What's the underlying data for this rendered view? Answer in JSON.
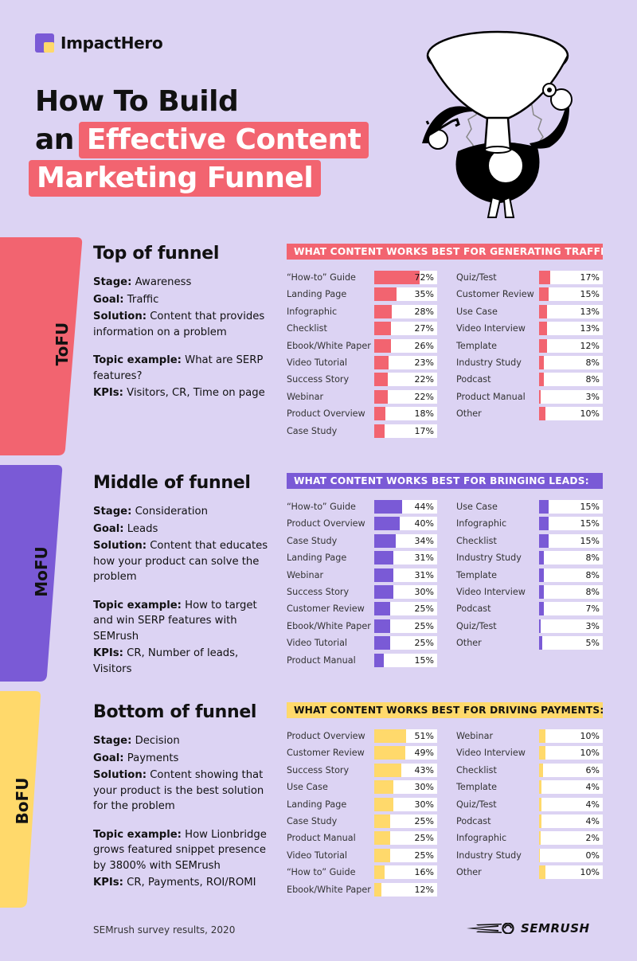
{
  "brand": {
    "name": "ImpactHero"
  },
  "title": {
    "line1": "How To Build",
    "line2_plain": "an",
    "line2_highlight": "Effective Content",
    "line3_highlight": "Marketing Funnel"
  },
  "colors": {
    "tofu": "#f26470",
    "mofu": "#7a5ad6",
    "bofu": "#ffd96b",
    "background": "#dcd3f3"
  },
  "stages": [
    {
      "tag": "ToFU",
      "title": "Top of funnel",
      "stage_label": "Stage:",
      "stage": "Awareness",
      "goal_label": "Goal:",
      "goal": "Traffic",
      "solution_label": "Solution:",
      "solution": "Content that provides information on a problem",
      "topic_label": "Topic example:",
      "topic": "What are SERP features?",
      "kpis_label": "KPIs:",
      "kpis": "Visitors, CR, Time on page"
    },
    {
      "tag": "MoFU",
      "title": "Middle of funnel",
      "stage_label": "Stage:",
      "stage": "Consideration",
      "goal_label": "Goal:",
      "goal": "Leads",
      "solution_label": "Solution:",
      "solution": "Content that educates how your product can solve the problem",
      "topic_label": "Topic example:",
      "topic": "How to target and win SERP features with SEMrush",
      "kpis_label": "KPIs:",
      "kpis": "CR, Number of leads, Visitors"
    },
    {
      "tag": "BoFU",
      "title": "Bottom of funnel",
      "stage_label": "Stage:",
      "stage": "Decision",
      "goal_label": "Goal:",
      "goal": "Payments",
      "solution_label": "Solution:",
      "solution": "Content showing that your product is the best solution for the problem",
      "topic_label": "Topic example:",
      "topic": "How Lionbridge grows featured snippet presence by 3800% with SEMrush",
      "kpis_label": "KPIs:",
      "kpis": "CR, Payments, ROI/ROMI"
    }
  ],
  "chart_data": [
    {
      "type": "bar",
      "title": "WHAT CONTENT WORKS BEST FOR GENERATING TRAFFIC:",
      "unit": "%",
      "categories": [
        "“How-to” Guide",
        "Landing Page",
        "Infographic",
        "Checklist",
        "Ebook/White Paper",
        "Video Tutorial",
        "Success Story",
        "Webinar",
        "Product Overview",
        "Case Study",
        "Quiz/Test",
        "Customer Review",
        "Use Case",
        "Video Interview",
        "Template",
        "Industry Study",
        "Podcast",
        "Product Manual",
        "Other"
      ],
      "values": [
        72,
        35,
        28,
        27,
        26,
        23,
        22,
        22,
        18,
        17,
        17,
        15,
        13,
        13,
        12,
        8,
        8,
        3,
        10
      ],
      "xlim": [
        0,
        100
      ]
    },
    {
      "type": "bar",
      "title": "WHAT CONTENT WORKS BEST FOR BRINGING LEADS:",
      "unit": "%",
      "categories": [
        "“How-to” Guide",
        "Product Overview",
        "Case Study",
        "Landing Page",
        "Webinar",
        "Success Story",
        "Customer Review",
        "Ebook/White Paper",
        "Video Tutorial",
        "Product Manual",
        "Use Case",
        "Infographic",
        "Checklist",
        "Industry Study",
        "Template",
        "Video Interview",
        "Podcast",
        "Quiz/Test",
        "Other"
      ],
      "values": [
        44,
        40,
        34,
        31,
        31,
        30,
        25,
        25,
        25,
        15,
        15,
        15,
        15,
        8,
        8,
        8,
        7,
        3,
        5
      ],
      "xlim": [
        0,
        100
      ]
    },
    {
      "type": "bar",
      "title": "WHAT CONTENT WORKS BEST FOR DRIVING PAYMENTS:",
      "unit": "%",
      "categories": [
        "Product Overview",
        "Customer Review",
        "Success Story",
        "Use Case",
        "Landing Page",
        "Case Study",
        "Product Manual",
        "Video Tutorial",
        "“How to” Guide",
        "Ebook/White Paper",
        "Webinar",
        "Video Interview",
        "Checklist",
        "Template",
        "Quiz/Test",
        "Podcast",
        "Infographic",
        "Industry Study",
        "Other"
      ],
      "values": [
        51,
        49,
        43,
        30,
        30,
        25,
        25,
        25,
        16,
        12,
        10,
        10,
        6,
        4,
        4,
        4,
        2,
        0,
        10
      ],
      "xlim": [
        0,
        100
      ]
    }
  ],
  "footer": {
    "source": "SEMrush survey results, 2020",
    "partner": "SEMRUSH"
  }
}
